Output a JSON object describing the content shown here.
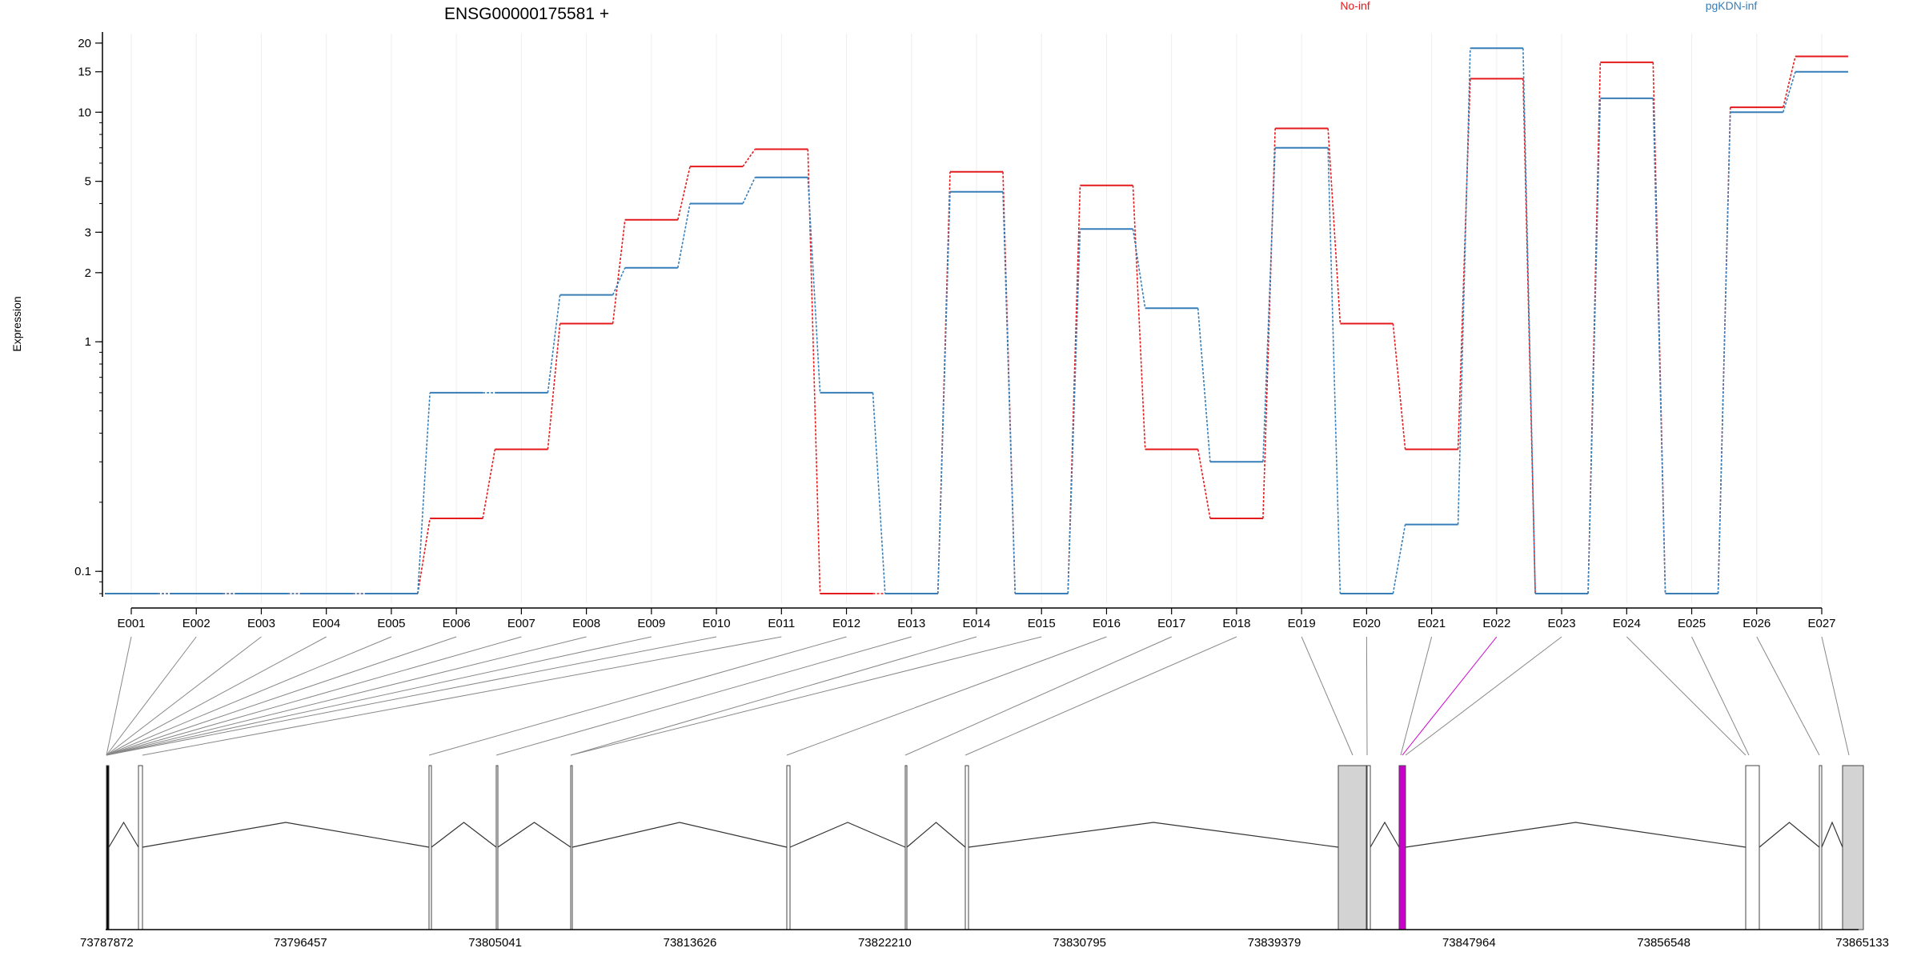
{
  "chart_data": {
    "type": "line",
    "title": "ENSG00000175581 +",
    "ylabel": "Expression",
    "xlabel": "",
    "y_scale": "log",
    "ylim": [
      0.08,
      22
    ],
    "y_ticks": [
      0.1,
      1,
      2,
      3,
      5,
      10,
      15,
      20
    ],
    "y_tick_labels": [
      "0.1",
      "1",
      "2",
      "3",
      "5",
      "10",
      "15",
      "20"
    ],
    "grid": "vertical-light",
    "legend_placement": "top",
    "categories": [
      "E001",
      "E002",
      "E003",
      "E004",
      "E005",
      "E006",
      "E007",
      "E008",
      "E009",
      "E010",
      "E011",
      "E012",
      "E013",
      "E014",
      "E015",
      "E016",
      "E017",
      "E018",
      "E019",
      "E020",
      "E021",
      "E022",
      "E023",
      "E024",
      "E025",
      "E026",
      "E027"
    ],
    "series": [
      {
        "name": "No-inf",
        "color": "#e41a1c",
        "values": [
          0.08,
          0.08,
          0.08,
          0.08,
          0.08,
          0.17,
          0.34,
          1.2,
          3.4,
          5.8,
          6.9,
          0.08,
          0.08,
          5.5,
          0.08,
          4.8,
          0.34,
          0.17,
          8.5,
          1.2,
          0.34,
          14,
          0.08,
          16.5,
          0.08,
          10.5,
          17.5
        ]
      },
      {
        "name": "pgKDN-inf",
        "color": "#377eb8",
        "values": [
          0.08,
          0.08,
          0.08,
          0.08,
          0.08,
          0.6,
          0.6,
          1.6,
          2.1,
          4.0,
          5.2,
          0.6,
          0.08,
          4.5,
          0.08,
          3.1,
          1.4,
          0.3,
          7.0,
          0.08,
          0.16,
          19,
          0.08,
          11.5,
          0.08,
          10,
          15
        ]
      }
    ],
    "gene_model": {
      "x_ticks": [
        "73787872",
        "73796457",
        "73805041",
        "73813626",
        "73822210",
        "73830795",
        "73839379",
        "73847964",
        "73856548",
        "73865133"
      ],
      "highlight_color": "#cc00cc",
      "exon_fill": "#d3d3d3"
    }
  }
}
